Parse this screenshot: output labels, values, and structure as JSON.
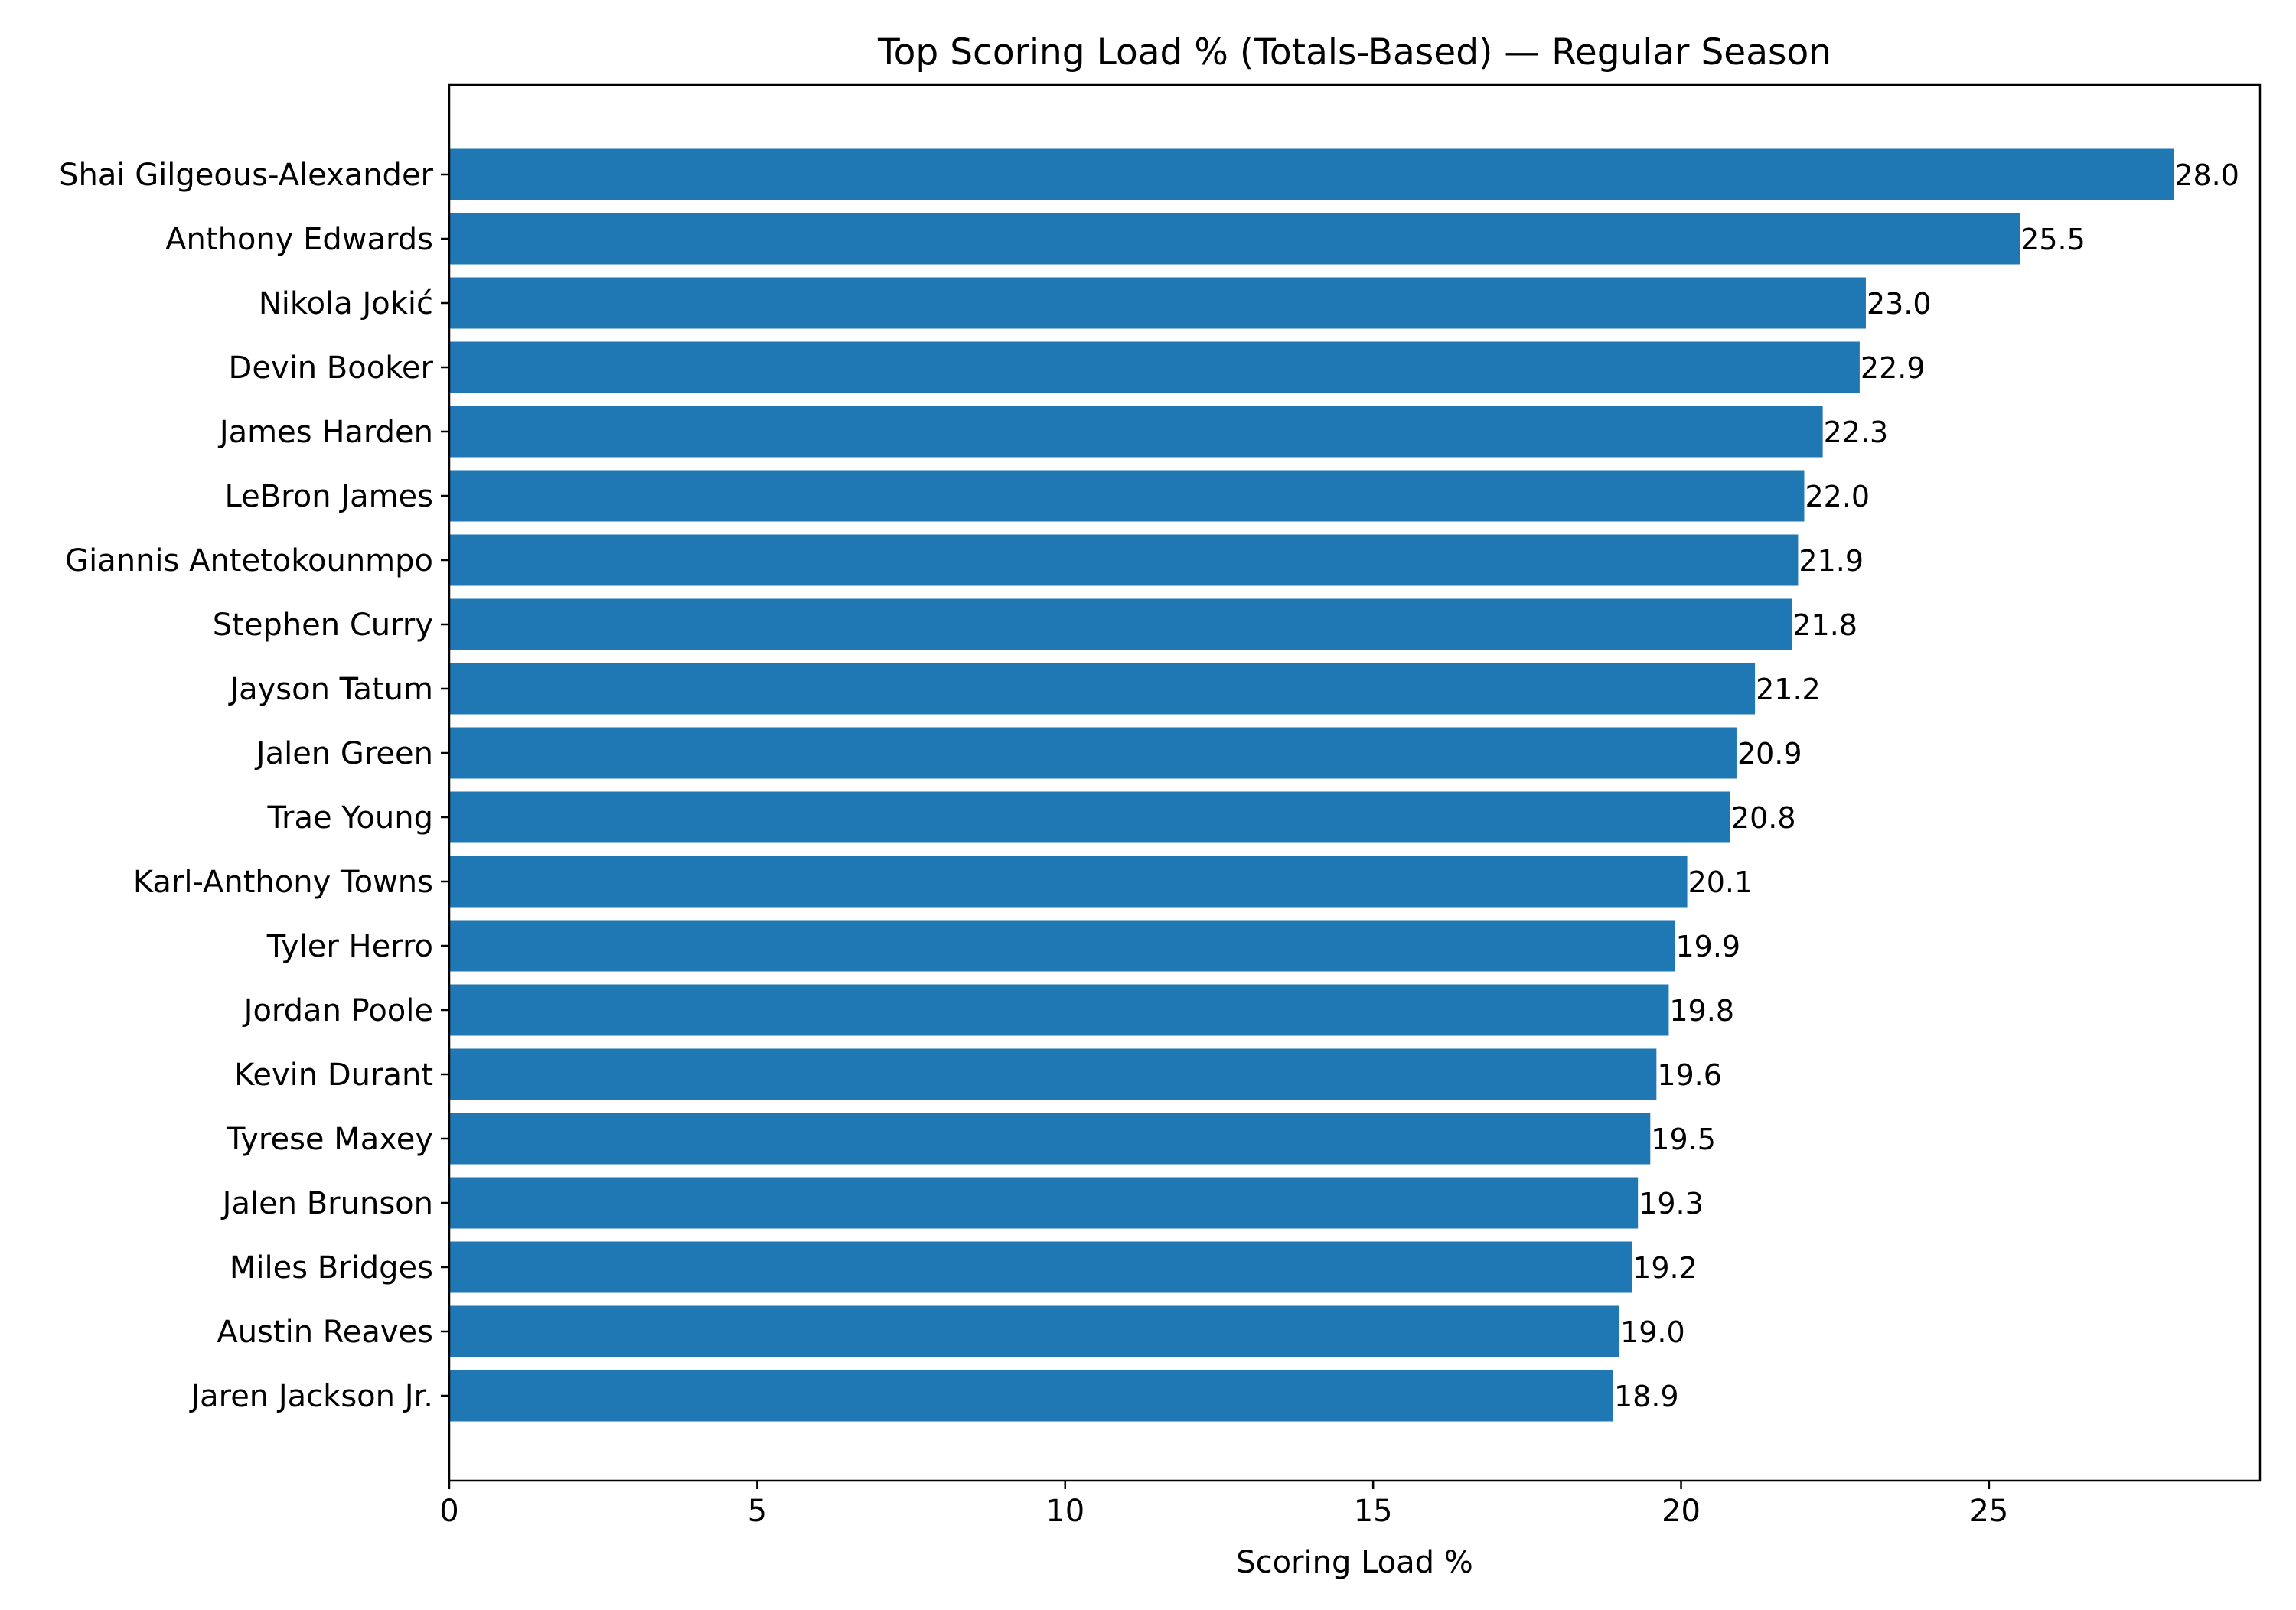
{
  "chart_data": {
    "type": "bar",
    "orientation": "horizontal",
    "title": "Top Scoring Load % (Totals-Based) — Regular Season",
    "xlabel": "Scoring Load %",
    "ylabel": "",
    "xlim": [
      0,
      29.4
    ],
    "x_ticks": [
      0,
      5,
      10,
      15,
      20,
      25
    ],
    "grid": false,
    "bar_color": "#1f77b4",
    "categories": [
      "Shai Gilgeous-Alexander",
      "Anthony Edwards",
      "Nikola Jokić",
      "Devin Booker",
      "James Harden",
      "LeBron James",
      "Giannis Antetokounmpo",
      "Stephen Curry",
      "Jayson Tatum",
      "Jalen Green",
      "Trae Young",
      "Karl-Anthony Towns",
      "Tyler Herro",
      "Jordan Poole",
      "Kevin Durant",
      "Tyrese Maxey",
      "Jalen Brunson",
      "Miles Bridges",
      "Austin Reaves",
      "Jaren Jackson Jr."
    ],
    "values": [
      28.0,
      25.5,
      23.0,
      22.9,
      22.3,
      22.0,
      21.9,
      21.8,
      21.2,
      20.9,
      20.8,
      20.1,
      19.9,
      19.8,
      19.6,
      19.5,
      19.3,
      19.2,
      19.0,
      18.9
    ],
    "value_labels": [
      "28.0",
      "25.5",
      "23.0",
      "22.9",
      "22.3",
      "22.0",
      "21.9",
      "21.8",
      "21.2",
      "20.9",
      "20.8",
      "20.1",
      "19.9",
      "19.8",
      "19.6",
      "19.5",
      "19.3",
      "19.2",
      "19.0",
      "18.9"
    ]
  }
}
